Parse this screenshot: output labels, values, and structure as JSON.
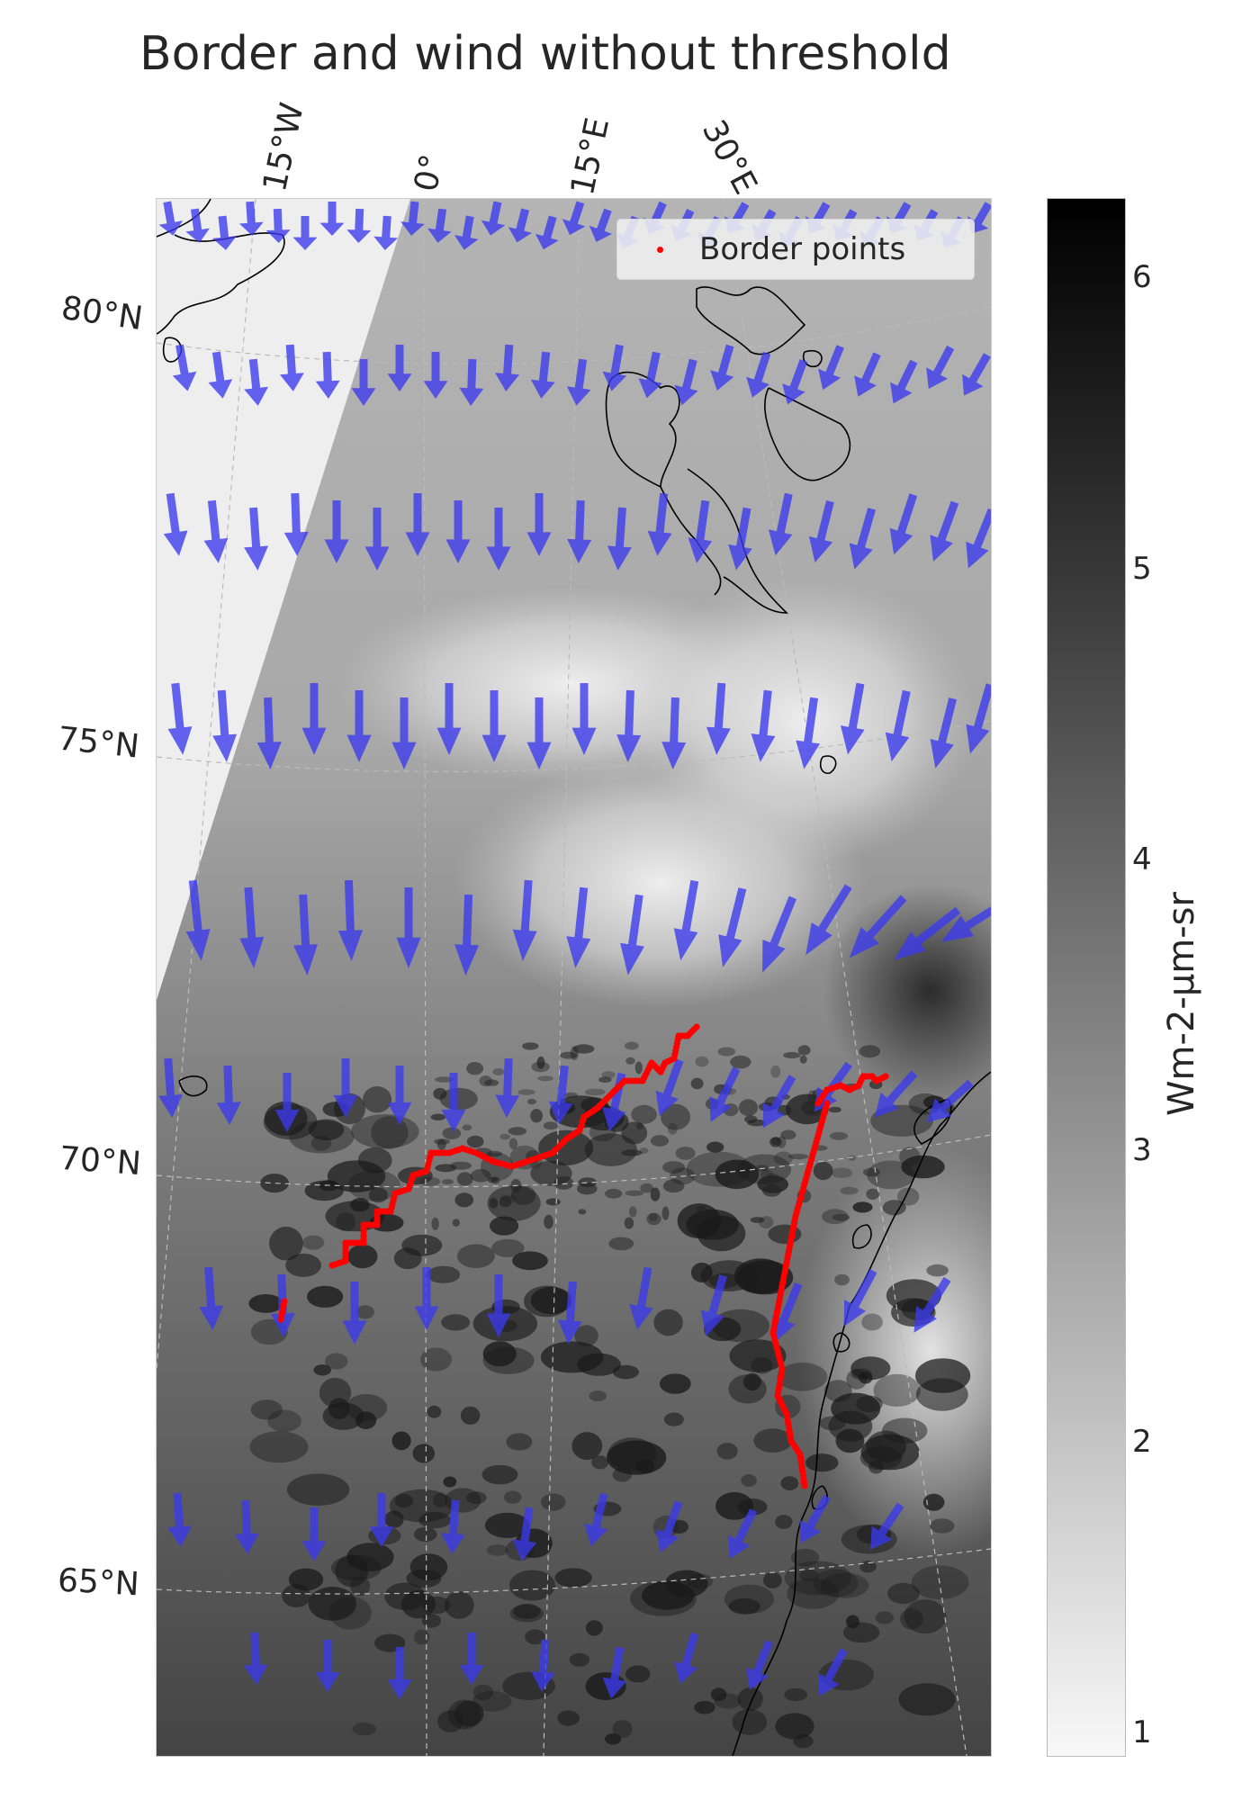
{
  "title": "Border and wind without threshold",
  "longitude_labels": [
    "15°W",
    "0°",
    "15°E",
    "30°E"
  ],
  "latitude_labels": [
    "80°N",
    "75°N",
    "70°N",
    "65°N"
  ],
  "legend": {
    "label": "Border points",
    "marker_color": "#ff0000"
  },
  "colorbar": {
    "label": "Wm-2-µm-sr",
    "ticks": [
      "6",
      "5",
      "4",
      "3",
      "2",
      "1"
    ],
    "range": [
      0.9,
      6.3
    ],
    "colormap": "Greys"
  },
  "colors": {
    "wind_arrow": "#3a3aee",
    "border_points": "#ff0000",
    "coastline": "#000000",
    "gridline": "#bbbbbb",
    "no_data": "#eeeeee"
  }
}
